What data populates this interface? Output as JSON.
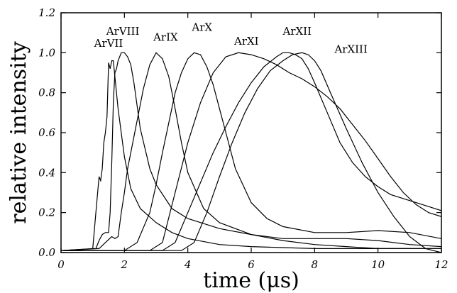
{
  "chart_data": {
    "type": "line",
    "title": "",
    "xlabel": "time (μs)",
    "ylabel": "relative intensity",
    "xlim": [
      0,
      12
    ],
    "ylim": [
      0.0,
      1.2
    ],
    "xticks": [
      0,
      2,
      4,
      6,
      8,
      10,
      12
    ],
    "yticks": [
      0.0,
      0.2,
      0.4,
      0.6,
      0.8,
      1.0,
      1.2
    ],
    "xtick_labels": [
      "0",
      "2",
      "4",
      "6",
      "8",
      "10",
      "12"
    ],
    "ytick_labels": [
      "0.0",
      "0.2",
      "0.4",
      "0.6",
      "0.8",
      "1.0",
      "1.2"
    ],
    "grid": false,
    "line_color": "#000000",
    "series": [
      {
        "name": "ArVII",
        "label_pos": [
          1.5,
          1.03
        ],
        "x": [
          0,
          1.0,
          1.1,
          1.2,
          1.25,
          1.3,
          1.35,
          1.4,
          1.45,
          1.5,
          1.55,
          1.6,
          1.65,
          1.7,
          1.8,
          2.0,
          2.2,
          2.5,
          3.0,
          3.5,
          4.0,
          5.0,
          6.0,
          7.0,
          8.0,
          9.0,
          10.0,
          11.0,
          12.0
        ],
        "y": [
          0.01,
          0.02,
          0.2,
          0.38,
          0.36,
          0.42,
          0.55,
          0.6,
          0.68,
          0.95,
          0.92,
          0.96,
          0.96,
          0.88,
          0.72,
          0.48,
          0.32,
          0.22,
          0.15,
          0.1,
          0.07,
          0.04,
          0.03,
          0.025,
          0.02,
          0.02,
          0.02,
          0.02,
          0.02
        ]
      },
      {
        "name": "ArVIII",
        "label_pos": [
          1.95,
          1.09
        ],
        "x": [
          0,
          1.1,
          1.2,
          1.3,
          1.4,
          1.5,
          1.55,
          1.6,
          1.65,
          1.7,
          1.75,
          1.8,
          1.9,
          2.0,
          2.1,
          2.2,
          2.3,
          2.5,
          2.8,
          3.0,
          3.5,
          4.0,
          5.0,
          6.0,
          7.0,
          8.0,
          9.0,
          10.0,
          11.0,
          12.0
        ],
        "y": [
          0.01,
          0.02,
          0.06,
          0.09,
          0.1,
          0.1,
          0.2,
          0.45,
          0.75,
          0.9,
          0.92,
          0.96,
          1.0,
          1.0,
          0.98,
          0.94,
          0.85,
          0.62,
          0.42,
          0.34,
          0.22,
          0.17,
          0.12,
          0.09,
          0.07,
          0.07,
          0.07,
          0.06,
          0.04,
          0.03
        ]
      },
      {
        "name": "ArIX",
        "label_pos": [
          3.3,
          1.06
        ],
        "x": [
          0,
          1.2,
          1.4,
          1.6,
          1.7,
          1.8,
          1.9,
          2.0,
          2.1,
          2.2,
          2.4,
          2.6,
          2.8,
          3.0,
          3.2,
          3.4,
          3.6,
          3.8,
          4.0,
          4.5,
          5.0,
          6.0,
          7.0,
          8.0,
          9.0,
          10.0,
          11.0,
          12.0
        ],
        "y": [
          0.01,
          0.02,
          0.05,
          0.08,
          0.07,
          0.08,
          0.2,
          0.3,
          0.42,
          0.5,
          0.66,
          0.82,
          0.94,
          1.0,
          0.97,
          0.88,
          0.72,
          0.55,
          0.4,
          0.22,
          0.15,
          0.09,
          0.06,
          0.04,
          0.03,
          0.02,
          0.02,
          0.02
        ]
      },
      {
        "name": "ArX",
        "label_pos": [
          4.45,
          1.11
        ],
        "x": [
          0,
          2.0,
          2.4,
          2.8,
          3.0,
          3.2,
          3.4,
          3.6,
          3.8,
          4.0,
          4.2,
          4.4,
          4.6,
          4.8,
          5.0,
          5.2,
          5.5,
          6.0,
          6.5,
          7.0,
          8.0,
          9.0,
          10.0,
          11.0,
          12.0
        ],
        "y": [
          0.01,
          0.01,
          0.05,
          0.2,
          0.34,
          0.5,
          0.65,
          0.8,
          0.9,
          0.97,
          1.0,
          0.99,
          0.93,
          0.84,
          0.72,
          0.6,
          0.42,
          0.25,
          0.17,
          0.13,
          0.1,
          0.1,
          0.11,
          0.1,
          0.07
        ]
      },
      {
        "name": "ArXI",
        "label_pos": [
          5.85,
          1.04
        ],
        "x": [
          0,
          2.8,
          3.2,
          3.6,
          4.0,
          4.4,
          4.8,
          5.2,
          5.6,
          6.0,
          6.4,
          6.8,
          7.2,
          7.6,
          8.0,
          8.4,
          8.8,
          9.2,
          9.6,
          10.0,
          10.4,
          10.8,
          11.2,
          11.6,
          12.0
        ],
        "y": [
          0.01,
          0.01,
          0.05,
          0.3,
          0.55,
          0.75,
          0.9,
          0.98,
          1.0,
          0.99,
          0.97,
          0.94,
          0.9,
          0.87,
          0.83,
          0.78,
          0.72,
          0.64,
          0.56,
          0.47,
          0.38,
          0.3,
          0.24,
          0.2,
          0.18
        ]
      },
      {
        "name": "ArXII",
        "label_pos": [
          7.45,
          1.09
        ],
        "x": [
          0,
          3.2,
          3.6,
          4.0,
          4.4,
          4.8,
          5.2,
          5.6,
          6.0,
          6.4,
          6.8,
          7.0,
          7.2,
          7.4,
          7.6,
          7.8,
          8.0,
          8.4,
          8.8,
          9.2,
          9.6,
          10.0,
          10.4,
          10.8,
          11.2,
          11.6,
          12.0
        ],
        "y": [
          0.01,
          0.01,
          0.05,
          0.2,
          0.35,
          0.5,
          0.63,
          0.75,
          0.85,
          0.93,
          0.98,
          1.0,
          1.0,
          0.99,
          0.97,
          0.92,
          0.85,
          0.7,
          0.55,
          0.45,
          0.38,
          0.33,
          0.29,
          0.27,
          0.25,
          0.23,
          0.21
        ]
      },
      {
        "name": "ArXIII",
        "label_pos": [
          9.15,
          1.0
        ],
        "x": [
          0,
          3.8,
          4.2,
          4.6,
          5.0,
          5.4,
          5.8,
          6.2,
          6.6,
          7.0,
          7.3,
          7.6,
          7.8,
          8.0,
          8.2,
          8.5,
          9.0,
          9.5,
          10.0,
          10.5,
          11.0,
          11.5,
          12.0
        ],
        "y": [
          0.01,
          0.01,
          0.05,
          0.2,
          0.38,
          0.55,
          0.7,
          0.82,
          0.91,
          0.96,
          0.99,
          1.0,
          0.99,
          0.96,
          0.91,
          0.8,
          0.62,
          0.45,
          0.3,
          0.18,
          0.08,
          0.02,
          0.0
        ]
      }
    ]
  }
}
